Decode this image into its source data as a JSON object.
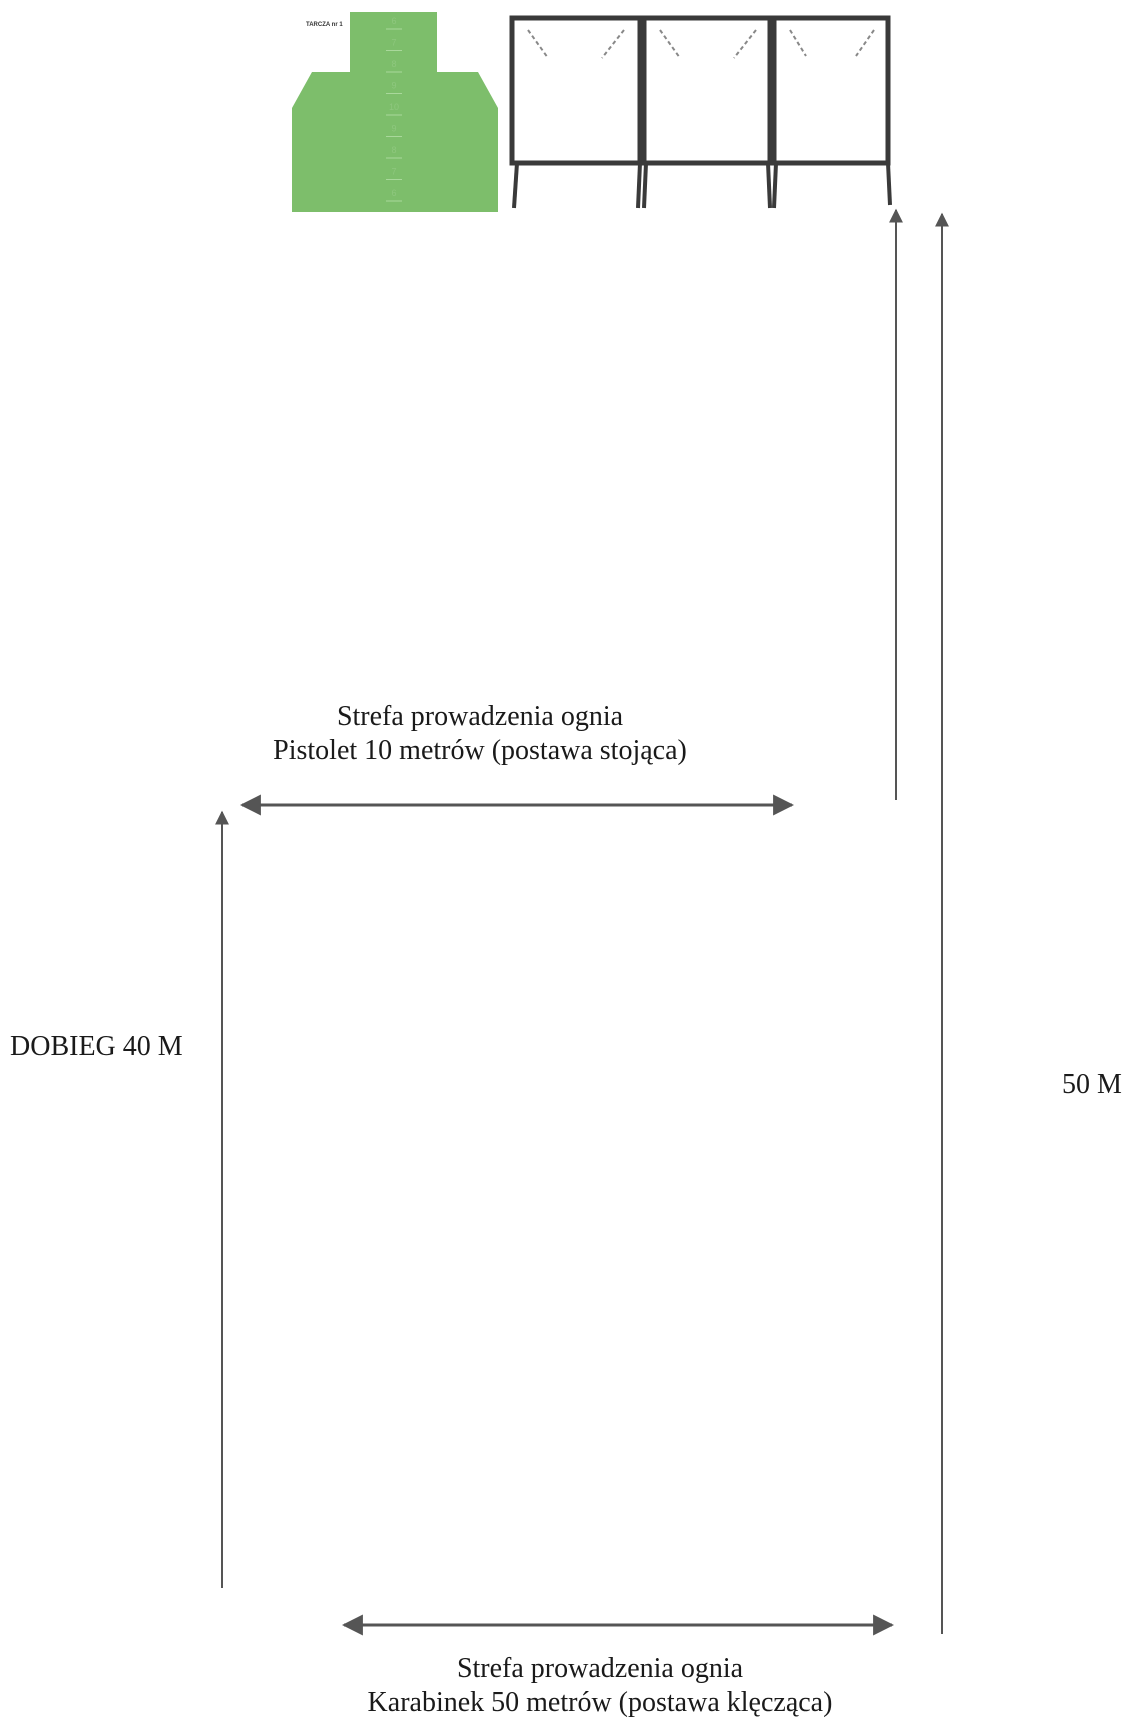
{
  "target": {
    "name": "TARCZA nr 1",
    "color": "#7dbe6b",
    "score_labels": [
      "6",
      "7",
      "8",
      "9",
      "10",
      "9",
      "8",
      "7",
      "6"
    ]
  },
  "frame": {
    "color": "#3a3a3a",
    "panels": 3
  },
  "zones": {
    "pistol": {
      "line1": "Strefa prowadzenia ognia",
      "line2": "Pistolet 10 metrów (postawa stojąca)"
    },
    "rifle": {
      "line1": "Strefa prowadzenia ognia",
      "line2": "Karabinek 50 metrów (postawa klęcząca)"
    }
  },
  "distances": {
    "run": "DOBIEG 40 M",
    "total": "50 M"
  },
  "arrow_color": "#555555"
}
